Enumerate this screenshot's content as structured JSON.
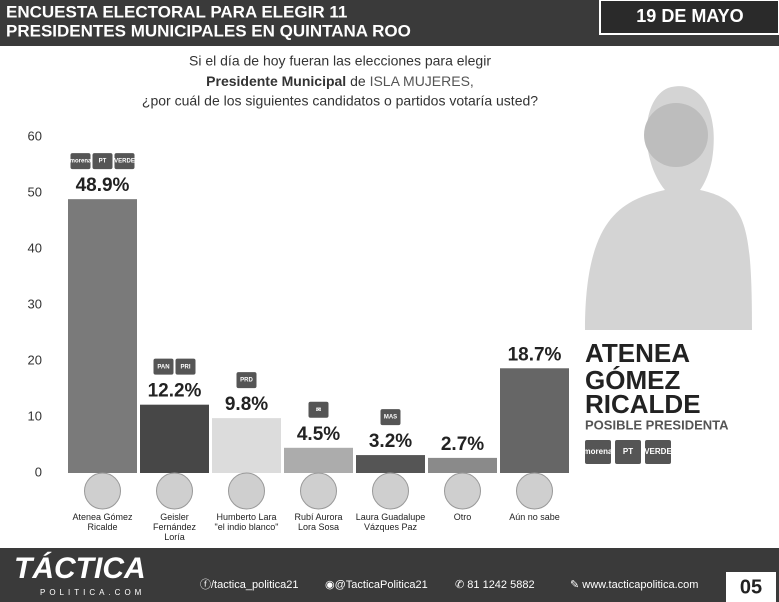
{
  "header": {
    "title_lines": [
      "ENCUESTA ELECTORAL PARA ELEGIR 11",
      "PRESIDENTES MUNICIPALES EN QUINTANA ROO"
    ],
    "date": "19 DE MAYO"
  },
  "question": {
    "line1": "Si el día de hoy fueran las elecciones para elegir",
    "line2_bold": "Presidente Municipal",
    "line2_mid": "de",
    "line2_place": "ISLA MUJERES,",
    "line3": "¿por cuál de los siguientes candidatos o partidos votaría usted?"
  },
  "chart_data": {
    "type": "bar",
    "categories": [
      "Atenea Gómez\nRicalde",
      "Geisler\nFernández\nLoría",
      "Humberto Lara\n\"el indio blanco\"",
      "Rubí Aurora\nLora Sosa",
      "Laura Guadalupe\nVázques Paz",
      "Otro",
      "Aún no sabe"
    ],
    "values": [
      48.9,
      12.2,
      9.8,
      4.5,
      3.2,
      2.7,
      18.7
    ],
    "value_labels": [
      "48.9%",
      "12.2%",
      "9.8%",
      "4.5%",
      "3.2%",
      "2.7%",
      "18.7%"
    ],
    "colors": [
      "#7a7a7a",
      "#474747",
      "#dcdcdc",
      "#acacac",
      "#555555",
      "#8a8a8a",
      "#666666"
    ],
    "ylim": [
      0,
      60
    ],
    "yticks": [
      0,
      10,
      20,
      30,
      40,
      50,
      60
    ],
    "grid": false
  },
  "party_logos": [
    [
      "morena",
      "PT",
      "VERDE"
    ],
    [
      "PAN",
      "PRI"
    ],
    [
      "PRD"
    ],
    [
      "✉"
    ],
    [
      "MAS"
    ],
    [],
    []
  ],
  "featured": {
    "name_lines": [
      "ATENEA",
      "GÓMEZ",
      "RICALDE"
    ],
    "role": "POSIBLE PRESIDENTA",
    "parties": [
      "morena",
      "PT",
      "VERDE"
    ]
  },
  "footer": {
    "brand": "TÁCTICA",
    "brand_sub": "POLITICA.COM",
    "facebook": "/tactica_politica21",
    "twitter": "@TacticaPolitica21",
    "phone": "81 1242 5882",
    "web": "www.tacticapolitica.com",
    "page": "05"
  }
}
